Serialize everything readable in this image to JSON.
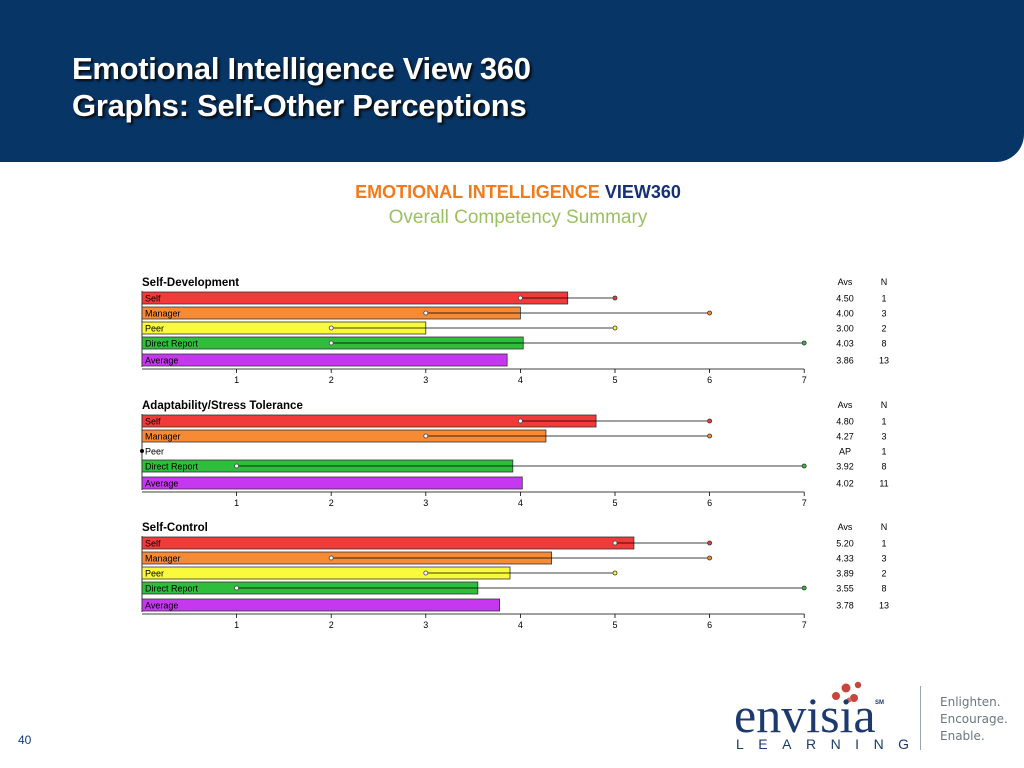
{
  "slide": {
    "title_line1": "Emotional Intelligence View 360",
    "title_line2": "Graphs:  Self-Other Perceptions",
    "page_number": "40",
    "header_color": "#063566"
  },
  "report": {
    "heading_part1": "EMOTIONAL INTELLIGENCE ",
    "heading_part2": "VIEW360",
    "subtitle": "Overall Competency Summary"
  },
  "logo": {
    "word": "envisia",
    "sm_mark": "SM",
    "subword": "LEARNING",
    "tagline": [
      "Enlighten.",
      "Encourage.",
      "Enable."
    ]
  },
  "chart_data": [
    {
      "type": "bar",
      "orientation": "horizontal",
      "title": "Self-Development",
      "xlim": [
        0,
        7
      ],
      "xticks": [
        1,
        2,
        3,
        4,
        5,
        6,
        7
      ],
      "col_headers": [
        "Avs",
        "N"
      ],
      "series": [
        {
          "name": "Self",
          "value": 4.5,
          "range": [
            4,
            5
          ],
          "avs": "4.50",
          "n": "1",
          "color": "#f23a3a"
        },
        {
          "name": "Manager",
          "value": 4.0,
          "range": [
            3,
            6
          ],
          "avs": "4.00",
          "n": "3",
          "color": "#f78a35"
        },
        {
          "name": "Peer",
          "value": 3.0,
          "range": [
            2,
            5
          ],
          "avs": "3.00",
          "n": "2",
          "color": "#fafa3c"
        },
        {
          "name": "Direct Report",
          "value": 4.03,
          "range": [
            2,
            7
          ],
          "avs": "4.03",
          "n": "8",
          "color": "#2fbd3c"
        },
        {
          "name": "Average",
          "value": 3.86,
          "range": null,
          "avs": "3.86",
          "n": "13",
          "color": "#c638f0"
        }
      ]
    },
    {
      "type": "bar",
      "orientation": "horizontal",
      "title": "Adaptability/Stress Tolerance",
      "xlim": [
        0,
        7
      ],
      "xticks": [
        1,
        2,
        3,
        4,
        5,
        6,
        7
      ],
      "col_headers": [
        "Avs",
        "N"
      ],
      "series": [
        {
          "name": "Self",
          "value": 4.8,
          "range": [
            4,
            6
          ],
          "avs": "4.80",
          "n": "1",
          "color": "#f23a3a"
        },
        {
          "name": "Manager",
          "value": 4.27,
          "range": [
            3,
            6
          ],
          "avs": "4.27",
          "n": "3",
          "color": "#f78a35"
        },
        {
          "name": "Peer",
          "value": 0,
          "range": null,
          "avs": "AP",
          "n": "1",
          "color": "#fafa3c"
        },
        {
          "name": "Direct Report",
          "value": 3.92,
          "range": [
            1,
            7
          ],
          "avs": "3.92",
          "n": "8",
          "color": "#2fbd3c"
        },
        {
          "name": "Average",
          "value": 4.02,
          "range": null,
          "avs": "4.02",
          "n": "11",
          "color": "#c638f0"
        }
      ]
    },
    {
      "type": "bar",
      "orientation": "horizontal",
      "title": "Self-Control",
      "xlim": [
        0,
        7
      ],
      "xticks": [
        1,
        2,
        3,
        4,
        5,
        6,
        7
      ],
      "col_headers": [
        "Avs",
        "N"
      ],
      "series": [
        {
          "name": "Self",
          "value": 5.2,
          "range": [
            5,
            6
          ],
          "avs": "5.20",
          "n": "1",
          "color": "#f23a3a"
        },
        {
          "name": "Manager",
          "value": 4.33,
          "range": [
            2,
            6
          ],
          "avs": "4.33",
          "n": "3",
          "color": "#f78a35"
        },
        {
          "name": "Peer",
          "value": 3.89,
          "range": [
            3,
            5
          ],
          "avs": "3.89",
          "n": "2",
          "color": "#fafa3c"
        },
        {
          "name": "Direct Report",
          "value": 3.55,
          "range": [
            1,
            7
          ],
          "avs": "3.55",
          "n": "8",
          "color": "#2fbd3c"
        },
        {
          "name": "Average",
          "value": 3.78,
          "range": null,
          "avs": "3.78",
          "n": "13",
          "color": "#c638f0"
        }
      ]
    }
  ]
}
